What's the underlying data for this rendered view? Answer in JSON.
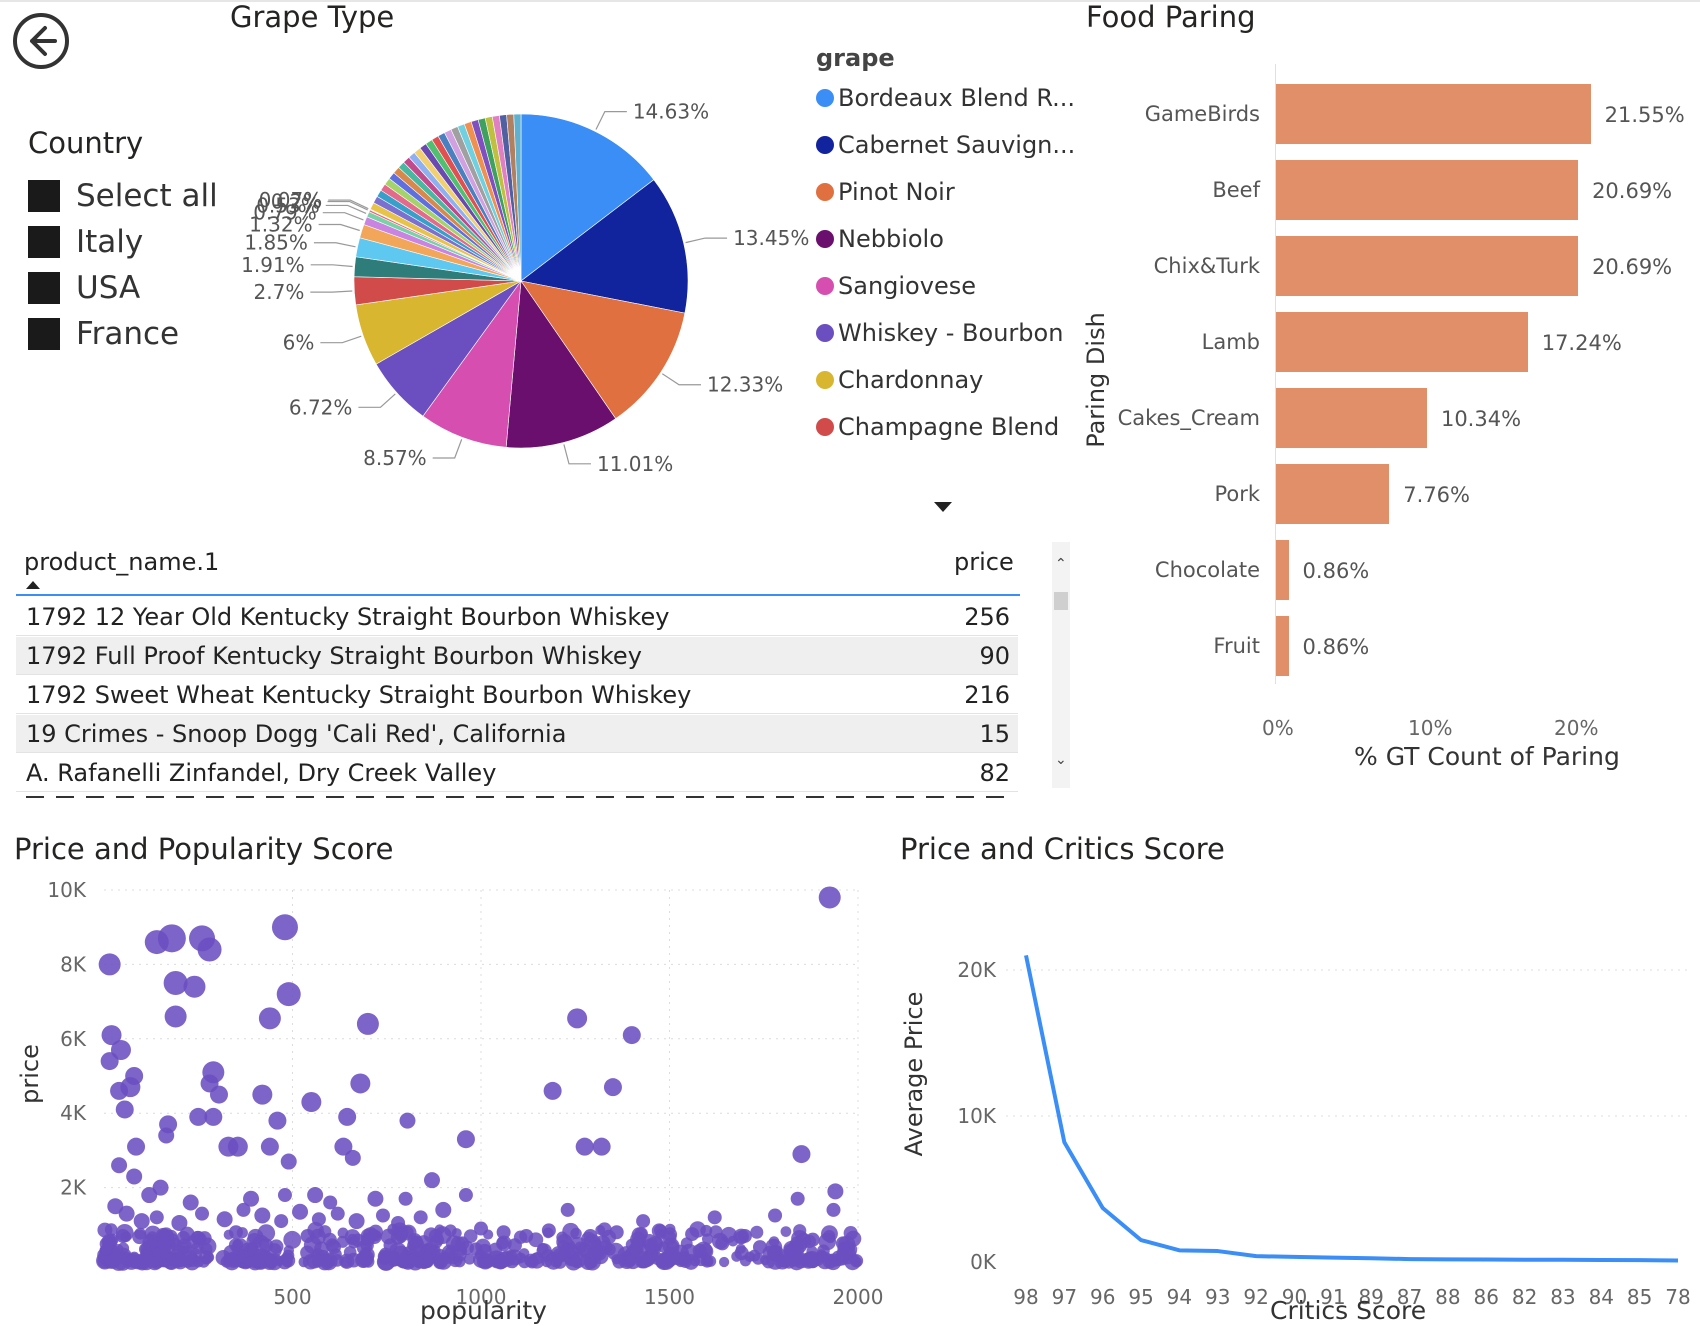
{
  "pie": {
    "title": "Grape Type",
    "legend_title": "grape",
    "legend": [
      {
        "label": "Bordeaux Blend R...",
        "color": "#3a8ef6"
      },
      {
        "label": "Cabernet Sauvign...",
        "color": "#12239e"
      },
      {
        "label": "Pinot Noir",
        "color": "#e07040"
      },
      {
        "label": "Nebbiolo",
        "color": "#6b0f6e"
      },
      {
        "label": "Sangiovese",
        "color": "#d64fb0"
      },
      {
        "label": "Whiskey - Bourbon",
        "color": "#6b4fc0"
      },
      {
        "label": "Chardonnay",
        "color": "#d8b630"
      },
      {
        "label": "Champagne Blend",
        "color": "#d24b4b"
      }
    ]
  },
  "slicer": {
    "title": "Country",
    "items": [
      "Select all",
      "Italy",
      "USA",
      "France"
    ]
  },
  "table": {
    "col_name": "product_name.1",
    "col_price": "price",
    "rows": [
      {
        "name": "1792 12 Year Old Kentucky Straight Bourbon Whiskey",
        "price": "256"
      },
      {
        "name": "1792 Full Proof Kentucky Straight Bourbon Whiskey",
        "price": "90"
      },
      {
        "name": "1792 Sweet Wheat Kentucky Straight Bourbon Whiskey",
        "price": "216"
      },
      {
        "name": "19 Crimes - Snoop Dogg 'Cali Red', California",
        "price": "15"
      },
      {
        "name": "A. Rafanelli Zinfandel, Dry Creek Valley",
        "price": "82"
      }
    ]
  },
  "chart_data": [
    {
      "type": "pie",
      "title": "Grape Type",
      "legend_title": "grape",
      "slices": [
        {
          "label": "Bordeaux Blend R...",
          "value": 14.63,
          "color": "#3a8ef6",
          "text": "14.63%"
        },
        {
          "label": "Cabernet Sauvign...",
          "value": 13.45,
          "color": "#12239e",
          "text": "13.45%"
        },
        {
          "label": "Pinot Noir",
          "value": 12.33,
          "color": "#e07040",
          "text": "12.33%"
        },
        {
          "label": "Nebbiolo",
          "value": 11.01,
          "color": "#6b0f6e",
          "text": "11.01%"
        },
        {
          "label": "Sangiovese",
          "value": 8.57,
          "color": "#d64fb0",
          "text": "8.57%"
        },
        {
          "label": "Whiskey - Bourbon",
          "value": 6.72,
          "color": "#6b4fc0",
          "text": "6.72%"
        },
        {
          "label": "Chardonnay",
          "value": 6.0,
          "color": "#d8b630",
          "text": "6%"
        },
        {
          "label": "Champagne Blend",
          "value": 2.7,
          "color": "#d24b4b",
          "text": "2.7%"
        },
        {
          "label": "",
          "value": 1.91,
          "color": "#2e7d7a",
          "text": "1.91%"
        },
        {
          "label": "",
          "value": 1.85,
          "color": "#5fc8f0",
          "text": "1.85%"
        },
        {
          "label": "",
          "value": 1.32,
          "color": "#f2a65a",
          "text": "1.32%"
        },
        {
          "label": "",
          "value": 0.79,
          "color": "#c884e0",
          "text": "0.79%"
        },
        {
          "label": "",
          "value": 0.53,
          "color": "#7ad1a6",
          "text": "0.53%"
        },
        {
          "label": "",
          "value": 0.2,
          "color": "#f06080",
          "text": "0.2%"
        },
        {
          "label": "",
          "value": 0.07,
          "color": "#9aa0aa",
          "text": "0.07%"
        }
      ]
    },
    {
      "type": "bar",
      "title": "Food Paring",
      "xlabel": "% GT Count of Paring",
      "ylabel": "Paring Dish",
      "categories": [
        "GameBirds",
        "Beef",
        "Chix&Turk",
        "Lamb",
        "Cakes_Cream",
        "Pork",
        "Chocolate",
        "Fruit"
      ],
      "values": [
        21.55,
        20.69,
        20.69,
        17.24,
        10.34,
        7.76,
        0.86,
        0.86
      ],
      "value_labels": [
        "21.55%",
        "20.69%",
        "20.69%",
        "17.24%",
        "10.34%",
        "7.76%",
        "0.86%",
        "0.86%"
      ],
      "xticks": [
        "0%",
        "10%",
        "20%"
      ],
      "xlim": [
        0,
        25
      ],
      "color": "#e08f68"
    },
    {
      "type": "scatter",
      "title": "Price and Popularity Score",
      "xlabel": "popularity",
      "ylabel": "price",
      "xticks": [
        "500",
        "1000",
        "1500",
        "2000"
      ],
      "yticks": [
        "2K",
        "4K",
        "6K",
        "8K",
        "10K"
      ],
      "xlim": [
        0,
        2000
      ],
      "ylim": [
        0,
        10000
      ],
      "color": "#6b4fc0",
      "points": [
        {
          "x": 1925,
          "y": 9800,
          "r": 11
        },
        {
          "x": 480,
          "y": 9000,
          "r": 13
        },
        {
          "x": 180,
          "y": 8700,
          "r": 14
        },
        {
          "x": 260,
          "y": 8700,
          "r": 13
        },
        {
          "x": 140,
          "y": 8600,
          "r": 12
        },
        {
          "x": 280,
          "y": 8400,
          "r": 12
        },
        {
          "x": 15,
          "y": 8000,
          "r": 11
        },
        {
          "x": 190,
          "y": 7500,
          "r": 12
        },
        {
          "x": 240,
          "y": 7400,
          "r": 11
        },
        {
          "x": 490,
          "y": 7200,
          "r": 12
        },
        {
          "x": 190,
          "y": 6600,
          "r": 11
        },
        {
          "x": 440,
          "y": 6550,
          "r": 11
        },
        {
          "x": 700,
          "y": 6400,
          "r": 11
        },
        {
          "x": 1255,
          "y": 6550,
          "r": 10
        },
        {
          "x": 1400,
          "y": 6100,
          "r": 9
        },
        {
          "x": 20,
          "y": 6100,
          "r": 10
        },
        {
          "x": 45,
          "y": 5700,
          "r": 10
        },
        {
          "x": 15,
          "y": 5400,
          "r": 9
        },
        {
          "x": 80,
          "y": 5000,
          "r": 9
        },
        {
          "x": 290,
          "y": 5100,
          "r": 11
        },
        {
          "x": 280,
          "y": 4800,
          "r": 9
        },
        {
          "x": 40,
          "y": 4600,
          "r": 9
        },
        {
          "x": 70,
          "y": 4700,
          "r": 10
        },
        {
          "x": 305,
          "y": 4500,
          "r": 9
        },
        {
          "x": 420,
          "y": 4500,
          "r": 10
        },
        {
          "x": 550,
          "y": 4300,
          "r": 10
        },
        {
          "x": 680,
          "y": 4800,
          "r": 10
        },
        {
          "x": 1190,
          "y": 4600,
          "r": 9
        },
        {
          "x": 1350,
          "y": 4700,
          "r": 9
        },
        {
          "x": 55,
          "y": 4100,
          "r": 9
        },
        {
          "x": 250,
          "y": 3900,
          "r": 9
        },
        {
          "x": 290,
          "y": 3900,
          "r": 9
        },
        {
          "x": 460,
          "y": 3800,
          "r": 9
        },
        {
          "x": 645,
          "y": 3900,
          "r": 9
        },
        {
          "x": 805,
          "y": 3800,
          "r": 8
        },
        {
          "x": 170,
          "y": 3700,
          "r": 9
        },
        {
          "x": 165,
          "y": 3400,
          "r": 8
        },
        {
          "x": 960,
          "y": 3300,
          "r": 9
        },
        {
          "x": 330,
          "y": 3100,
          "r": 10
        },
        {
          "x": 355,
          "y": 3100,
          "r": 10
        },
        {
          "x": 440,
          "y": 3100,
          "r": 9
        },
        {
          "x": 635,
          "y": 3100,
          "r": 9
        },
        {
          "x": 1275,
          "y": 3100,
          "r": 9
        },
        {
          "x": 1320,
          "y": 3100,
          "r": 9
        },
        {
          "x": 1850,
          "y": 2900,
          "r": 9
        },
        {
          "x": 85,
          "y": 3100,
          "r": 9
        },
        {
          "x": 660,
          "y": 2800,
          "r": 8
        },
        {
          "x": 490,
          "y": 2700,
          "r": 8
        },
        {
          "x": 40,
          "y": 2600,
          "r": 8
        },
        {
          "x": 80,
          "y": 2300,
          "r": 8
        },
        {
          "x": 870,
          "y": 2200,
          "r": 8
        },
        {
          "x": 1940,
          "y": 1900,
          "r": 8
        },
        {
          "x": 1840,
          "y": 1700,
          "r": 7
        },
        {
          "x": 1935,
          "y": 1400,
          "r": 7
        },
        {
          "x": 960,
          "y": 1800,
          "r": 7
        },
        {
          "x": 150,
          "y": 2000,
          "r": 8
        },
        {
          "x": 390,
          "y": 1700,
          "r": 8
        },
        {
          "x": 560,
          "y": 1800,
          "r": 8
        },
        {
          "x": 720,
          "y": 1700,
          "r": 8
        },
        {
          "x": 230,
          "y": 1600,
          "r": 8
        },
        {
          "x": 480,
          "y": 1800,
          "r": 7
        },
        {
          "x": 600,
          "y": 1600,
          "r": 7
        },
        {
          "x": 800,
          "y": 1700,
          "r": 7
        },
        {
          "x": 900,
          "y": 1400,
          "r": 8
        },
        {
          "x": 1230,
          "y": 1400,
          "r": 7
        },
        {
          "x": 1620,
          "y": 1200,
          "r": 7
        },
        {
          "x": 1780,
          "y": 1250,
          "r": 7
        },
        {
          "x": 1430,
          "y": 1100,
          "r": 7
        },
        {
          "x": 120,
          "y": 1800,
          "r": 8
        },
        {
          "x": 30,
          "y": 1500,
          "r": 8
        },
        {
          "x": 60,
          "y": 1300,
          "r": 8
        },
        {
          "x": 100,
          "y": 1100,
          "r": 8
        },
        {
          "x": 140,
          "y": 1200,
          "r": 7
        },
        {
          "x": 200,
          "y": 1050,
          "r": 8
        },
        {
          "x": 260,
          "y": 1300,
          "r": 7
        },
        {
          "x": 320,
          "y": 1150,
          "r": 8
        },
        {
          "x": 370,
          "y": 1400,
          "r": 7
        },
        {
          "x": 420,
          "y": 1250,
          "r": 8
        },
        {
          "x": 470,
          "y": 1100,
          "r": 7
        },
        {
          "x": 520,
          "y": 1350,
          "r": 8
        },
        {
          "x": 570,
          "y": 1150,
          "r": 7
        },
        {
          "x": 620,
          "y": 1300,
          "r": 7
        },
        {
          "x": 670,
          "y": 1100,
          "r": 8
        },
        {
          "x": 740,
          "y": 1250,
          "r": 7
        },
        {
          "x": 780,
          "y": 1050,
          "r": 7
        },
        {
          "x": 840,
          "y": 1200,
          "r": 7
        },
        {
          "x": 1000,
          "y": 900,
          "r": 7
        },
        {
          "x": 1060,
          "y": 800,
          "r": 7
        },
        {
          "x": 1120,
          "y": 700,
          "r": 7
        },
        {
          "x": 1180,
          "y": 850,
          "r": 7
        },
        {
          "x": 1290,
          "y": 700,
          "r": 7
        },
        {
          "x": 1360,
          "y": 800,
          "r": 7
        },
        {
          "x": 1500,
          "y": 650,
          "r": 7
        },
        {
          "x": 1560,
          "y": 750,
          "r": 7
        },
        {
          "x": 1700,
          "y": 700,
          "r": 7
        },
        {
          "x": 1880,
          "y": 600,
          "r": 7
        },
        {
          "x": 1960,
          "y": 500,
          "r": 7
        },
        {
          "x": 1740,
          "y": 400,
          "r": 7
        },
        {
          "x": 1640,
          "y": 500,
          "r": 7
        },
        {
          "x": 1450,
          "y": 450,
          "r": 7
        },
        {
          "x": 1330,
          "y": 400,
          "r": 7
        },
        {
          "x": 1090,
          "y": 450,
          "r": 7
        },
        {
          "x": 950,
          "y": 500,
          "r": 7
        },
        {
          "x": 880,
          "y": 700,
          "r": 7
        },
        {
          "x": 700,
          "y": 600,
          "r": 7
        },
        {
          "x": 540,
          "y": 700,
          "r": 7
        },
        {
          "x": 350,
          "y": 800,
          "r": 7
        },
        {
          "x": 250,
          "y": 650,
          "r": 7
        },
        {
          "x": 50,
          "y": 700,
          "r": 7
        },
        {
          "x": 160,
          "y": 500,
          "r": 7
        },
        {
          "x": 430,
          "y": 450,
          "r": 7
        },
        {
          "x": 610,
          "y": 400,
          "r": 7
        },
        {
          "x": 760,
          "y": 450,
          "r": 7
        },
        {
          "x": 1010,
          "y": 300,
          "r": 7
        },
        {
          "x": 1240,
          "y": 300,
          "r": 7
        },
        {
          "x": 1580,
          "y": 300,
          "r": 7
        },
        {
          "x": 1820,
          "y": 300,
          "r": 7
        }
      ]
    },
    {
      "type": "line",
      "title": "Price and Critics Score",
      "xlabel": "Critics Score",
      "ylabel": "Average Price",
      "categories": [
        "98",
        "97",
        "96",
        "95",
        "94",
        "93",
        "92",
        "90",
        "91",
        "89",
        "87",
        "88",
        "86",
        "82",
        "83",
        "84",
        "85",
        "78"
      ],
      "values": [
        21000,
        8200,
        3700,
        1500,
        800,
        750,
        400,
        350,
        300,
        260,
        200,
        180,
        170,
        150,
        150,
        140,
        130,
        100
      ],
      "yticks": [
        "0K",
        "10K",
        "20K"
      ],
      "ylim": [
        0,
        20000
      ],
      "color": "#3a8ef6"
    }
  ],
  "bar_chart": {
    "title": "Food Paring",
    "xlabel": "% GT Count of Paring",
    "ylabel": "Paring Dish"
  },
  "scatter_chart": {
    "title": "Price and Popularity Score",
    "xlabel": "popularity",
    "ylabel": "price"
  },
  "line_chart": {
    "title": "Price and Critics Score",
    "xlabel": "Critics Score",
    "ylabel": "Average Price"
  },
  "icons": {
    "back": "back-arrow-icon",
    "sort": "sort-up-icon",
    "dropdown": "dropdown-caret-icon"
  }
}
